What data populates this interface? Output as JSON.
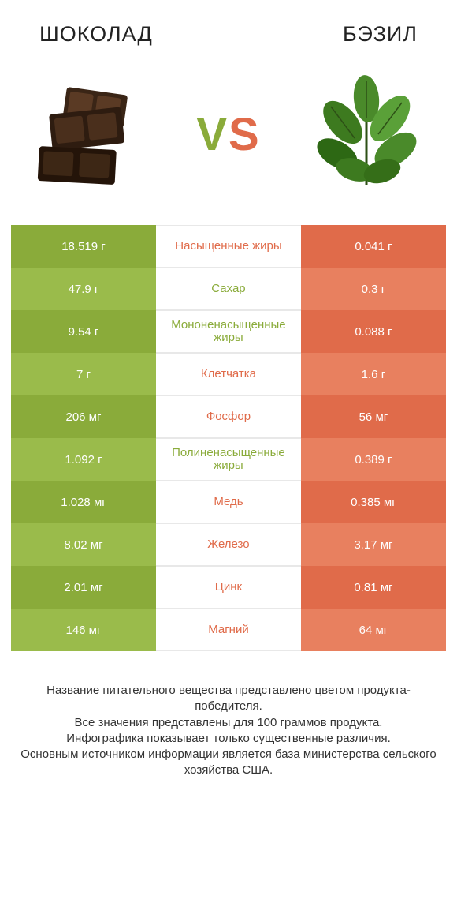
{
  "header": {
    "left_title": "ШОКОЛАД",
    "right_title": "БЭЗИЛ"
  },
  "vs": {
    "v": "V",
    "s": "S"
  },
  "colors": {
    "left_a": "#8aab3a",
    "left_b": "#9abb4b",
    "right_a": "#e06b4a",
    "right_b": "#e8805f",
    "mid_left_text": "#e06b4a",
    "mid_right_text": "#8aab3a",
    "mid_border": "#e8e8e8"
  },
  "comparison": {
    "type": "infographic-table",
    "rows": [
      {
        "left": "18.519 г",
        "mid": "Насыщенные жиры",
        "right": "0.041 г",
        "winner": "left"
      },
      {
        "left": "47.9 г",
        "mid": "Сахар",
        "right": "0.3 г",
        "winner": "right"
      },
      {
        "left": "9.54 г",
        "mid": "Мононенасыщенные жиры",
        "right": "0.088 г",
        "winner": "right"
      },
      {
        "left": "7 г",
        "mid": "Клетчатка",
        "right": "1.6 г",
        "winner": "left"
      },
      {
        "left": "206 мг",
        "mid": "Фосфор",
        "right": "56 мг",
        "winner": "left"
      },
      {
        "left": "1.092 г",
        "mid": "Полиненасыщенные жиры",
        "right": "0.389 г",
        "winner": "right"
      },
      {
        "left": "1.028 мг",
        "mid": "Медь",
        "right": "0.385 мг",
        "winner": "left"
      },
      {
        "left": "8.02 мг",
        "mid": "Железо",
        "right": "3.17 мг",
        "winner": "left"
      },
      {
        "left": "2.01 мг",
        "mid": "Цинк",
        "right": "0.81 мг",
        "winner": "left"
      },
      {
        "left": "146 мг",
        "mid": "Магний",
        "right": "64 мг",
        "winner": "left"
      }
    ]
  },
  "footer": {
    "line1": "Название питательного вещества представлено цветом продукта-победителя.",
    "line2": "Все значения представлены для 100 граммов продукта.",
    "line3": "Инфографика показывает только существенные различия.",
    "line4": "Основным источником информации является база министерства сельского хозяйства США."
  }
}
